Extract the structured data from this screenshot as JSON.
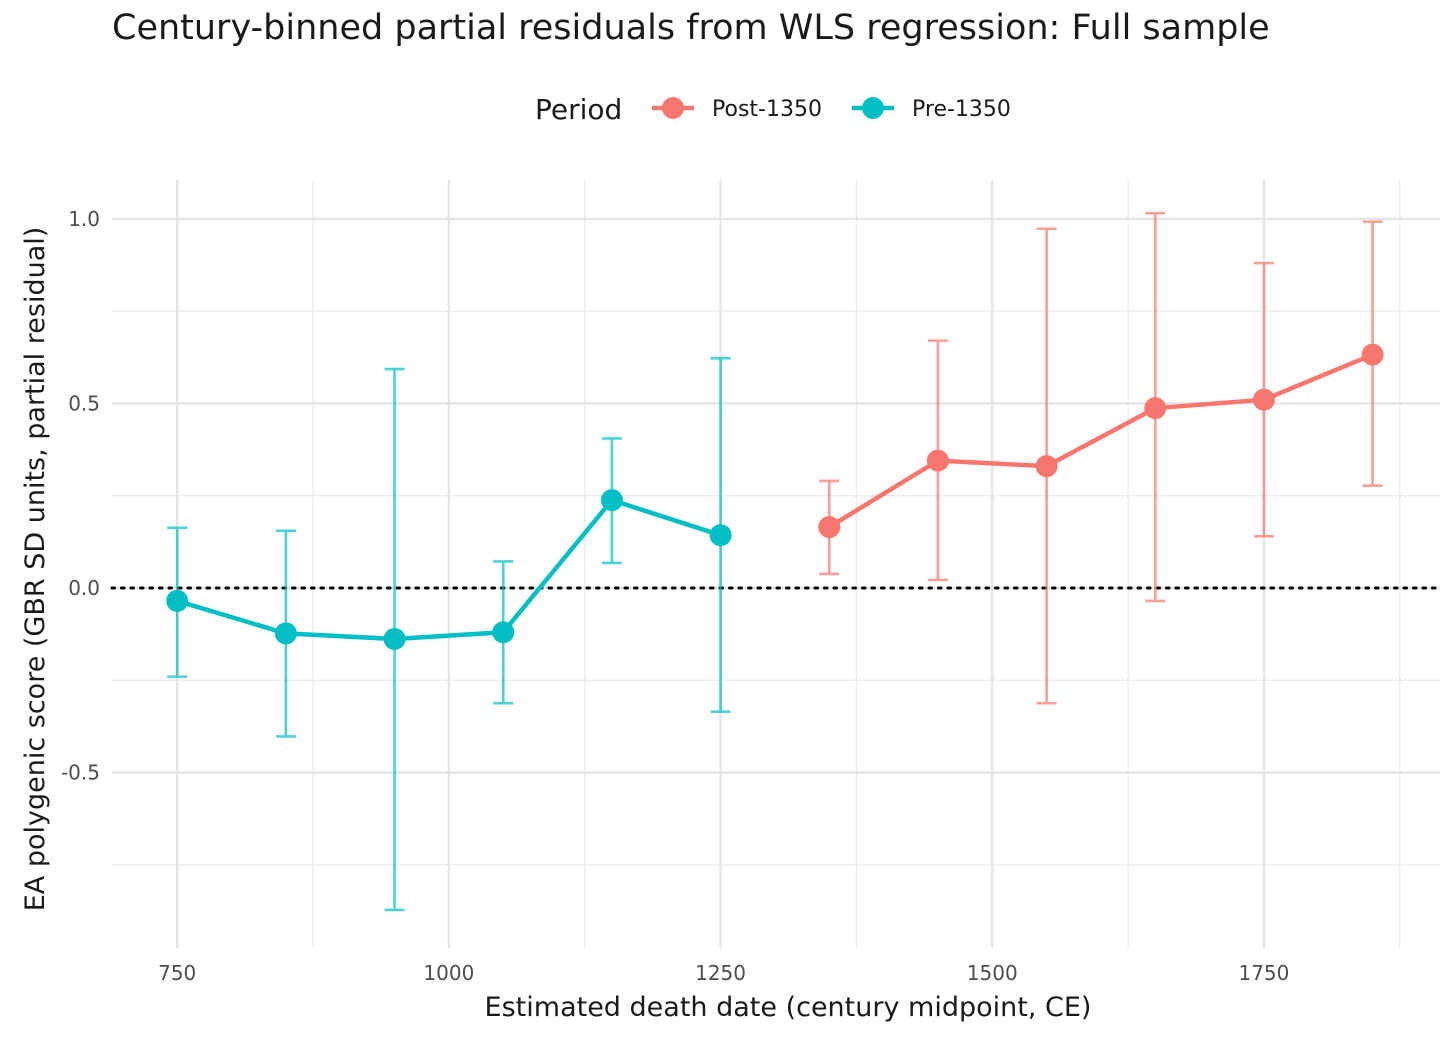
{
  "chart_data": {
    "type": "line",
    "title": "Century-binned partial residuals from WLS regression: Full sample",
    "xlabel": "Estimated death date (century midpoint, CE)",
    "ylabel": "EA polygenic score (GBR SD units, partial residual)",
    "xlim": [
      690,
      1912
    ],
    "ylim": [
      -0.975,
      1.105
    ],
    "x_ticks": [
      750,
      1000,
      1250,
      1500,
      1750
    ],
    "x_tick_labels": [
      "750",
      "1000",
      "1250",
      "1500",
      "1750"
    ],
    "y_ticks": [
      1.0,
      0.5,
      0.0,
      -0.5
    ],
    "y_tick_labels": [
      "1.0",
      "0.5",
      "0.0",
      "-0.5"
    ],
    "reference_line": {
      "y": 0.0,
      "style": "dotted"
    },
    "grid": true,
    "legend": {
      "title": "Period",
      "position": "top"
    },
    "series": [
      {
        "name": "Post-1350",
        "color": "#F8766D",
        "x": [
          1350,
          1450,
          1550,
          1650,
          1750,
          1850
        ],
        "y": [
          0.165,
          0.345,
          0.33,
          0.487,
          0.51,
          0.632
        ],
        "lower": [
          0.038,
          0.022,
          -0.312,
          -0.035,
          0.14,
          0.277
        ],
        "upper": [
          0.29,
          0.67,
          0.973,
          1.015,
          0.88,
          0.992
        ]
      },
      {
        "name": "Pre-1350",
        "color": "#00BFC4",
        "x": [
          750,
          850,
          950,
          1050,
          1150,
          1250
        ],
        "y": [
          -0.035,
          -0.123,
          -0.138,
          -0.12,
          0.238,
          0.143
        ],
        "lower": [
          -0.24,
          -0.402,
          -0.872,
          -0.312,
          0.068,
          -0.335
        ],
        "upper": [
          0.163,
          0.155,
          0.593,
          0.072,
          0.405,
          0.622
        ]
      }
    ]
  }
}
